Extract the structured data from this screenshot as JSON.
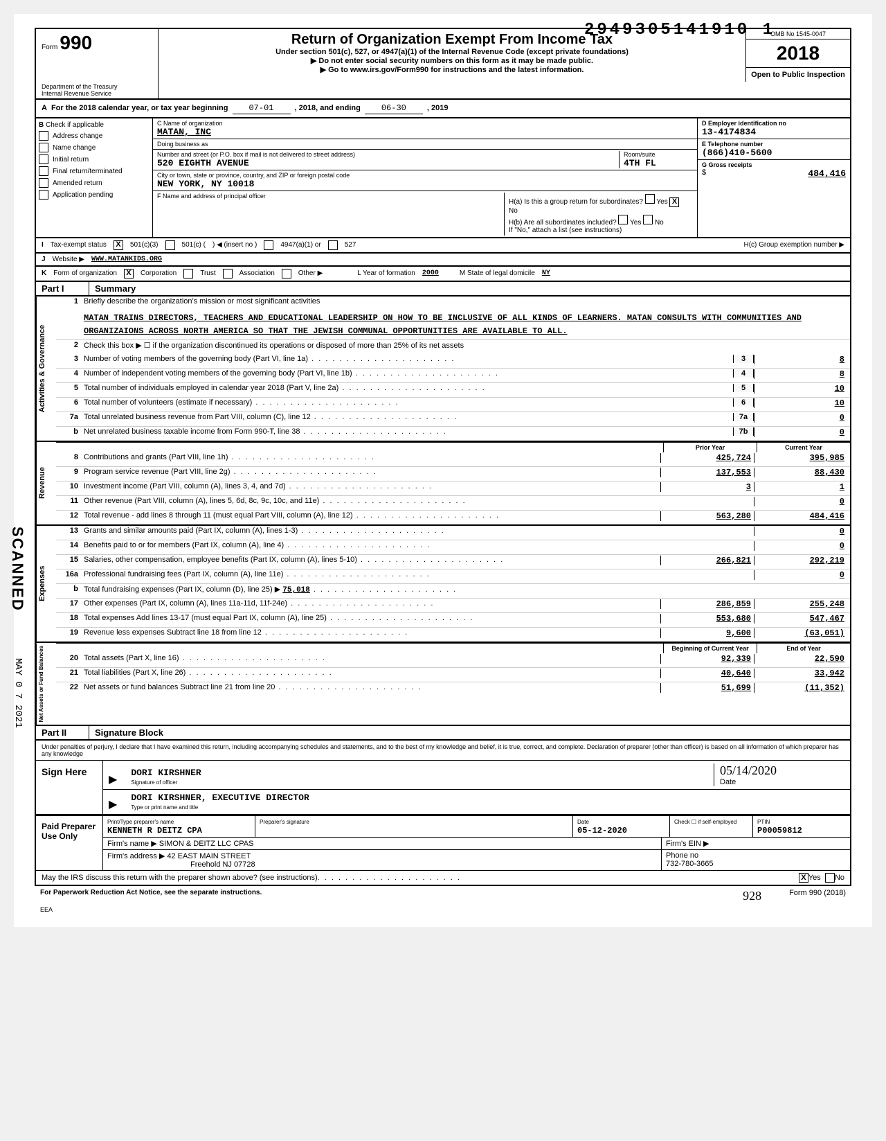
{
  "dln": "2949305141910 1",
  "omb": "OMB No 1545-0047",
  "form_number": "990",
  "form_title": "Return of Organization Exempt From Income Tax",
  "form_subtitle": "Under section 501(c), 527, or 4947(a)(1) of the Internal Revenue Code (except private foundations)",
  "form_note1": "▶ Do not enter social security numbers on this form as it may be made public.",
  "form_note2": "▶ Go to www.irs.gov/Form990 for instructions and the latest information.",
  "tax_year": "2018",
  "open_public": "Open to Public Inspection",
  "dept": "Department of the Treasury",
  "irs": "Internal Revenue Service",
  "section_a": {
    "label": "A",
    "text": "For the 2018 calendar year, or tax year beginning",
    "begin": "07-01",
    "mid": ", 2018, and ending",
    "end": "06-30",
    "end2": ", 2019"
  },
  "section_b": {
    "label": "B",
    "check_label": "Check if applicable",
    "options": [
      "Address change",
      "Name change",
      "Initial return",
      "Final return/terminated",
      "Amended return",
      "Application pending"
    ]
  },
  "section_c": {
    "name_lbl": "C  Name of organization",
    "name": "MATAN, INC",
    "dba_lbl": "Doing business as",
    "dba": "",
    "addr_lbl": "Number and street (or P.O. box if mail is not delivered to street address)",
    "addr": "520 EIGHTH AVENUE",
    "room_lbl": "Room/suite",
    "room": "4TH FL",
    "city_lbl": "City or town, state or province, country, and ZIP or foreign postal code",
    "city": "NEW YORK, NY 10018"
  },
  "section_d": {
    "lbl": "D  Employer identification no",
    "val": "13-4174834"
  },
  "section_e": {
    "lbl": "E  Telephone number",
    "val": "(866)410-5600"
  },
  "section_g": {
    "lbl": "G  Gross receipts",
    "val": "484,416"
  },
  "section_f": {
    "lbl": "F  Name and address of principal officer",
    "val": ""
  },
  "section_h": {
    "ha": "H(a) Is this a group return for subordinates?",
    "ha_yes": "Yes",
    "ha_no": "No",
    "ha_checked": "no",
    "hb": "H(b) Are all subordinates included?",
    "hb_yes": "Yes",
    "hb_no": "No",
    "hb_note": "If \"No,\" attach a list (see instructions)",
    "hc": "H(c)  Group exemption number ▶"
  },
  "section_i": {
    "lbl": "I",
    "txt": "Tax-exempt status",
    "opt1": "501(c)(3)",
    "opt1_checked": true,
    "opt2": "501(c) (",
    "opt2b": ")  ◀ (insert no )",
    "opt3": "4947(a)(1) or",
    "opt4": "527"
  },
  "section_j": {
    "lbl": "J",
    "txt": "Website ▶",
    "val": "WWW.MATANKIDS.ORG"
  },
  "section_k": {
    "lbl": "K",
    "txt": "Form of organization",
    "opt1": "Corporation",
    "opt1_checked": true,
    "opt2": "Trust",
    "opt3": "Association",
    "opt4": "Other ▶",
    "yof_lbl": "L  Year of formation",
    "yof": "2000",
    "state_lbl": "M  State of legal domicile",
    "state": "NY"
  },
  "part1": {
    "lbl": "Part I",
    "title": "Summary"
  },
  "governance": {
    "label": "Activities & Governance",
    "line1_lbl": "Briefly describe the organization's mission or most significant activities",
    "line1_val": "MATAN TRAINS DIRECTORS, TEACHERS AND EDUCATIONAL LEADERSHIP ON HOW TO BE INCLUSIVE OF ALL KINDS OF LEARNERS. MATAN CONSULTS WITH COMMUNITIES AND ORGANIZAIONS ACROSS NORTH AMERICA SO THAT THE JEWISH COMMUNAL OPPORTUNITIES ARE AVAILABLE TO ALL.",
    "line2": "Check this box ▶ ☐ if the organization discontinued its operations or disposed of more than 25% of its net assets",
    "lines": [
      {
        "n": "3",
        "t": "Number of voting members of the governing body (Part VI, line 1a)",
        "b": "3",
        "v": "8"
      },
      {
        "n": "4",
        "t": "Number of independent voting members of the governing body (Part VI, line 1b)",
        "b": "4",
        "v": "8"
      },
      {
        "n": "5",
        "t": "Total number of individuals employed in calendar year 2018 (Part V, line 2a)",
        "b": "5",
        "v": "10"
      },
      {
        "n": "6",
        "t": "Total number of volunteers (estimate if necessary)",
        "b": "6",
        "v": "10"
      },
      {
        "n": "7a",
        "t": "Total unrelated business revenue from Part VIII, column (C), line 12",
        "b": "7a",
        "v": "0"
      },
      {
        "n": "b",
        "t": "Net unrelated business taxable income from Form 990-T, line 38",
        "b": "7b",
        "v": "0"
      }
    ]
  },
  "prior_cur_hdr": {
    "prior": "Prior Year",
    "cur": "Current Year"
  },
  "revenue": {
    "label": "Revenue",
    "lines": [
      {
        "n": "8",
        "t": "Contributions and grants (Part VIII, line 1h)",
        "p": "425,724",
        "c": "395,985"
      },
      {
        "n": "9",
        "t": "Program service revenue (Part VIII, line 2g)",
        "p": "137,553",
        "c": "88,430"
      },
      {
        "n": "10",
        "t": "Investment income (Part VIII, column (A), lines 3, 4, and 7d)",
        "p": "3",
        "c": "1"
      },
      {
        "n": "11",
        "t": "Other revenue (Part VIII, column (A), lines 5, 6d, 8c, 9c, 10c, and 11e)",
        "p": "",
        "c": "0"
      },
      {
        "n": "12",
        "t": "Total revenue - add lines 8 through 11 (must equal Part VIII, column (A), line 12)",
        "p": "563,280",
        "c": "484,416"
      }
    ]
  },
  "expenses": {
    "label": "Expenses",
    "lines": [
      {
        "n": "13",
        "t": "Grants and similar amounts paid (Part IX, column (A), lines 1-3)",
        "p": "",
        "c": "0"
      },
      {
        "n": "14",
        "t": "Benefits paid to or for members (Part IX, column (A), line 4)",
        "p": "",
        "c": "0"
      },
      {
        "n": "15",
        "t": "Salaries, other compensation, employee benefits (Part IX, column (A), lines 5-10)",
        "p": "266,821",
        "c": "292,219"
      },
      {
        "n": "16a",
        "t": "Professional fundraising fees (Part IX, column (A), line 11e)",
        "p": "",
        "c": "0"
      },
      {
        "n": "b",
        "t": "Total fundraising expenses (Part IX, column (D), line 25)  ▶",
        "p": "",
        "c": "",
        "inline": "75,018"
      },
      {
        "n": "17",
        "t": "Other expenses (Part IX, column (A), lines 11a-11d, 11f-24e)",
        "p": "286,859",
        "c": "255,248"
      },
      {
        "n": "18",
        "t": "Total expenses  Add lines 13-17 (must equal Part IX, column (A), line 25)",
        "p": "553,680",
        "c": "547,467"
      },
      {
        "n": "19",
        "t": "Revenue less expenses  Subtract line 18 from line 12",
        "p": "9,600",
        "c": "(63,051)"
      }
    ]
  },
  "netassets_hdr": {
    "beg": "Beginning of Current Year",
    "end": "End of Year"
  },
  "netassets": {
    "label": "Net Assets or Fund Balances",
    "lines": [
      {
        "n": "20",
        "t": "Total assets (Part X, line 16)",
        "p": "92,339",
        "c": "22,590"
      },
      {
        "n": "21",
        "t": "Total liabilities (Part X, line 26)",
        "p": "40,640",
        "c": "33,942"
      },
      {
        "n": "22",
        "t": "Net assets or fund balances  Subtract line 21 from line 20",
        "p": "51,699",
        "c": "(11,352)"
      }
    ]
  },
  "part2": {
    "lbl": "Part II",
    "title": "Signature Block"
  },
  "sig_note": "Under penalties of perjury, I declare that I have examined this return, including accompanying schedules and statements, and to the best of my knowledge and belief, it is true, correct, and complete. Declaration of preparer (other than officer) is based on all information of which preparer has any knowledge",
  "sign_here": "Sign Here",
  "sig_officer": "DORI KIRSHNER",
  "sig_officer_lbl": "Signature of officer",
  "sig_date": "05/14/2020",
  "sig_date_lbl": "Date",
  "sig_name_title": "DORI KIRSHNER, EXECUTIVE DIRECTOR",
  "sig_name_title_lbl": "Type or print name and title",
  "paid_preparer": "Paid Preparer Use Only",
  "prep": {
    "name_lbl": "Print/Type preparer's name",
    "name": "KENNETH R DEITZ CPA",
    "sig_lbl": "Preparer's signature",
    "date_lbl": "Date",
    "date": "05-12-2020",
    "check_lbl": "Check ☐ if self-employed",
    "ptin_lbl": "PTIN",
    "ptin": "P00059812",
    "firm_lbl": "Firm's name ▶",
    "firm": "SIMON & DEITZ LLC CPAS",
    "ein_lbl": "Firm's EIN ▶",
    "ein": "",
    "addr_lbl": "Firm's address ▶",
    "addr1": "42 EAST MAIN STREET",
    "addr2": "Freehold NJ 07728",
    "phone_lbl": "Phone no",
    "phone": "732-780-3665"
  },
  "discuss": {
    "q": "May the IRS discuss this return with the preparer shown above? (see instructions)",
    "yes": "Yes",
    "no": "No",
    "checked": "yes"
  },
  "footer": {
    "left": "For Paperwork Reduction Act Notice, see the separate instructions.",
    "eea": "EEA",
    "right": "Form 990 (2018)"
  },
  "stamp_scanned": "SCANNED",
  "stamp_date": "MAY 0 7 2021",
  "hand_928": "928"
}
